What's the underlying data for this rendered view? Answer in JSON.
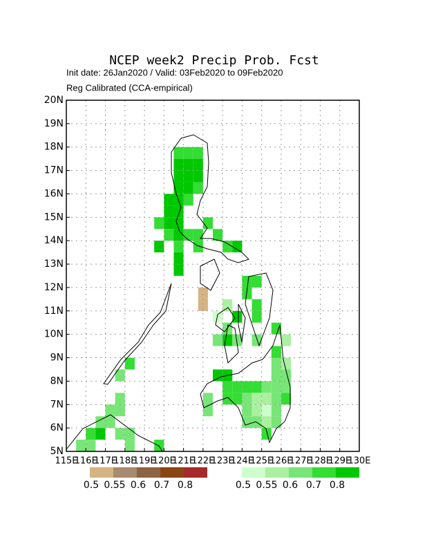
{
  "chart_data": {
    "type": "grid-map",
    "title": "NCEP week2 Precip Prob. Fcst",
    "subtitle": "Init date: 26Jan2020 / Valid: 03Feb2020 to 09Feb2020",
    "note": "Reg Calibrated (CCA-empirical)",
    "xlim": [
      115,
      130
    ],
    "ylim": [
      5,
      20
    ],
    "xticks": [
      {
        "value": 115,
        "label": "115E"
      },
      {
        "value": 116,
        "label": "116E"
      },
      {
        "value": 117,
        "label": "117E"
      },
      {
        "value": 118,
        "label": "118E"
      },
      {
        "value": 119,
        "label": "119E"
      },
      {
        "value": 120,
        "label": "120E"
      },
      {
        "value": 121,
        "label": "121E"
      },
      {
        "value": 122,
        "label": "122E"
      },
      {
        "value": 123,
        "label": "123E"
      },
      {
        "value": 124,
        "label": "124E"
      },
      {
        "value": 125,
        "label": "125E"
      },
      {
        "value": 126,
        "label": "126E"
      },
      {
        "value": 127,
        "label": "127E"
      },
      {
        "value": 128,
        "label": "128E"
      },
      {
        "value": 129,
        "label": "129E"
      },
      {
        "value": 130,
        "label": "130E"
      }
    ],
    "yticks": [
      {
        "value": 5,
        "label": "5N"
      },
      {
        "value": 6,
        "label": "6N"
      },
      {
        "value": 7,
        "label": "7N"
      },
      {
        "value": 8,
        "label": "8N"
      },
      {
        "value": 9,
        "label": "9N"
      },
      {
        "value": 10,
        "label": "10N"
      },
      {
        "value": 11,
        "label": "11N"
      },
      {
        "value": 12,
        "label": "12N"
      },
      {
        "value": 13,
        "label": "13N"
      },
      {
        "value": 14,
        "label": "14N"
      },
      {
        "value": 15,
        "label": "15N"
      },
      {
        "value": 16,
        "label": "16N"
      },
      {
        "value": 17,
        "label": "17N"
      },
      {
        "value": 18,
        "label": "18N"
      },
      {
        "value": 19,
        "label": "19N"
      },
      {
        "value": 20,
        "label": "20N"
      }
    ],
    "grid": true,
    "cell_size": 0.5,
    "dry_legend": {
      "colors": [
        "#d4b483",
        "#a88a6e",
        "#8c6444",
        "#8b4513",
        "#a52a2a"
      ],
      "labels": [
        "0.5",
        "0.55",
        "0.6",
        "0.7",
        "0.8"
      ]
    },
    "wet_legend": {
      "colors": [
        "#ccffcc",
        "#aaf0a0",
        "#77e677",
        "#33dd33",
        "#00c800"
      ],
      "labels": [
        "0.5",
        "0.55",
        "0.6",
        "0.7",
        "0.8"
      ]
    },
    "dry_cells": [
      [
        121.75,
        11,
        0
      ],
      [
        121.75,
        11.5,
        0
      ]
    ],
    "wet_cells": [
      [
        120.5,
        17.5,
        3
      ],
      [
        121,
        17.5,
        3
      ],
      [
        121.5,
        17.5,
        3
      ],
      [
        120.5,
        17,
        4
      ],
      [
        121,
        17,
        4
      ],
      [
        121.5,
        17,
        4
      ],
      [
        120.5,
        16.5,
        4
      ],
      [
        121,
        16.5,
        4
      ],
      [
        121.5,
        16.5,
        4
      ],
      [
        120.5,
        16,
        4
      ],
      [
        121,
        16,
        4
      ],
      [
        121.5,
        16,
        3
      ],
      [
        120,
        15.5,
        4
      ],
      [
        120.5,
        15.5,
        4
      ],
      [
        121,
        15.5,
        3
      ],
      [
        120,
        15,
        4
      ],
      [
        120.5,
        15,
        4
      ],
      [
        119.5,
        14.5,
        3
      ],
      [
        120,
        14.5,
        4
      ],
      [
        120.5,
        14.5,
        4
      ],
      [
        120,
        14,
        3
      ],
      [
        120.5,
        14,
        4
      ],
      [
        121,
        14,
        3
      ],
      [
        121.5,
        14,
        3
      ],
      [
        122,
        14.5,
        3
      ],
      [
        122.5,
        14,
        3
      ],
      [
        119.5,
        13.5,
        4
      ],
      [
        120.5,
        13.5,
        3
      ],
      [
        120.5,
        13,
        4
      ],
      [
        120.5,
        12.5,
        4
      ],
      [
        121.5,
        13.5,
        3
      ],
      [
        123,
        13.5,
        3
      ],
      [
        123.5,
        13.5,
        4
      ],
      [
        124,
        12,
        3
      ],
      [
        124.5,
        12,
        3
      ],
      [
        124,
        11.5,
        3
      ],
      [
        124.5,
        11,
        3
      ],
      [
        124.5,
        10.5,
        3
      ],
      [
        123,
        11,
        1
      ],
      [
        122.5,
        10.5,
        0
      ],
      [
        123,
        10,
        2
      ],
      [
        123.5,
        10.5,
        4
      ],
      [
        123,
        9.5,
        4
      ],
      [
        122.5,
        9.5,
        2
      ],
      [
        123.5,
        9.5,
        2
      ],
      [
        124.5,
        9.5,
        2
      ],
      [
        125.5,
        10,
        3
      ],
      [
        126,
        9.5,
        1
      ],
      [
        125.5,
        9,
        3
      ],
      [
        122.5,
        8,
        4
      ],
      [
        123,
        8,
        4
      ],
      [
        123,
        7.5,
        3
      ],
      [
        123.5,
        7.5,
        3
      ],
      [
        124,
        7.5,
        3
      ],
      [
        124.5,
        7.5,
        3
      ],
      [
        125,
        7.5,
        2
      ],
      [
        125.5,
        7.5,
        2
      ],
      [
        126,
        7.5,
        2
      ],
      [
        123,
        7,
        3
      ],
      [
        123.5,
        7,
        3
      ],
      [
        124,
        7,
        2
      ],
      [
        124.5,
        7,
        1
      ],
      [
        125,
        7,
        1
      ],
      [
        125.5,
        7,
        2
      ],
      [
        126,
        7,
        3
      ],
      [
        124,
        6.5,
        2
      ],
      [
        124.5,
        6.5,
        1
      ],
      [
        125,
        6.5,
        0
      ],
      [
        125.5,
        6.5,
        2
      ],
      [
        124,
        6,
        2
      ],
      [
        124.5,
        6,
        2
      ],
      [
        125,
        6,
        1
      ],
      [
        125.5,
        6,
        2
      ],
      [
        125,
        5.5,
        3
      ],
      [
        125.5,
        8,
        2
      ],
      [
        126,
        8,
        2
      ],
      [
        125.5,
        8.5,
        2
      ],
      [
        126,
        8.5,
        1
      ],
      [
        122,
        6.5,
        2
      ],
      [
        122,
        7,
        2
      ],
      [
        117.5,
        8,
        2
      ],
      [
        118,
        8.5,
        3
      ],
      [
        117.5,
        7,
        2
      ],
      [
        117,
        6.5,
        2
      ],
      [
        117.5,
        6.5,
        2
      ],
      [
        116.5,
        6,
        2
      ],
      [
        117,
        6,
        2
      ],
      [
        116,
        5.5,
        3
      ],
      [
        116.5,
        5.5,
        4
      ],
      [
        117.5,
        5.5,
        2
      ],
      [
        118,
        5.5,
        2
      ],
      [
        115.5,
        5,
        2
      ],
      [
        116,
        5,
        2
      ],
      [
        118,
        5,
        2
      ],
      [
        119.5,
        5,
        3
      ]
    ]
  }
}
